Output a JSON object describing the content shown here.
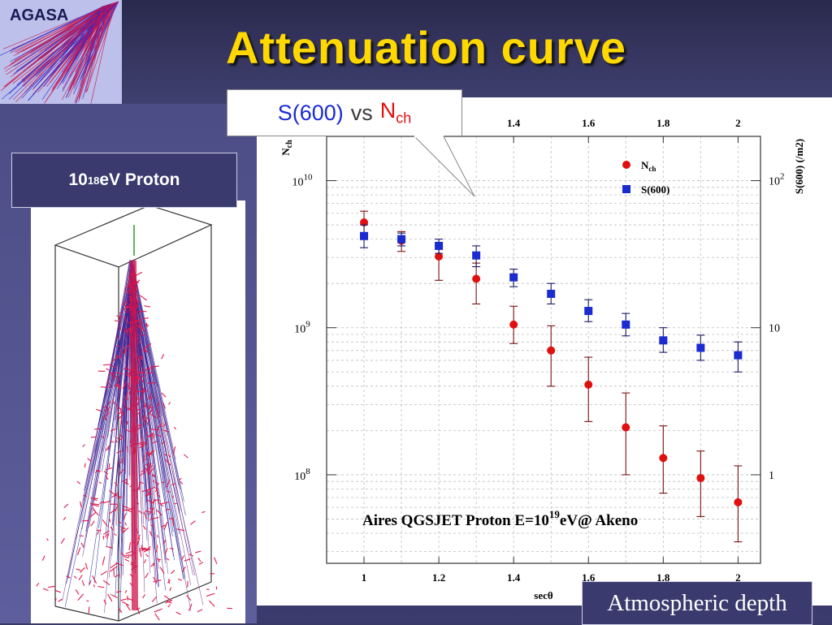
{
  "logo": {
    "text": "AGASA"
  },
  "title": "Attenuation curve",
  "proton_label": {
    "base": "10",
    "exp": "18",
    "rest": "eV Proton"
  },
  "callout": {
    "s600": "S(600)",
    "vs": "vs",
    "nch_main": "N",
    "nch_sub": "ch"
  },
  "depth_label": "Atmospheric depth",
  "colors": {
    "nch": "#e01010",
    "s600": "#1a2bd0",
    "title": "#ffd800"
  },
  "chart_data": {
    "type": "scatter",
    "xlabel": "secθ",
    "ylabel_left": "Nch",
    "ylabel_right": "S(600) (/m2)",
    "xlim": [
      0.9,
      2.06
    ],
    "ylim_left": [
      25000000.0,
      20000000000.0
    ],
    "ylim_right": [
      0.25,
      200
    ],
    "yscale": "log",
    "x_ticks": [
      "1",
      "1.2",
      "1.4",
      "1.6",
      "1.8",
      "2"
    ],
    "x_ticks_top": [
      "1.4",
      "1.6",
      "1.8",
      "2"
    ],
    "y_ticks_left": [
      {
        "base": "10",
        "exp": "10",
        "value": 10000000000.0
      },
      {
        "base": "10",
        "exp": "9",
        "value": 1000000000.0
      },
      {
        "base": "10",
        "exp": "8",
        "value": 100000000.0
      }
    ],
    "y_ticks_right": [
      {
        "base": "10",
        "exp": "2",
        "value": 100
      },
      {
        "base": "10",
        "exp": "",
        "value": 10
      },
      {
        "base": "1",
        "exp": "",
        "value": 1
      }
    ],
    "annotation": {
      "pre": "Aires QGSJET Proton E=10",
      "exp": "19",
      "post": "eV@ Akeno"
    },
    "legend": {
      "position": "top-right"
    },
    "series": [
      {
        "name": "N",
        "name_sub": "ch",
        "marker": "circle",
        "x": [
          1.0,
          1.1,
          1.2,
          1.3,
          1.4,
          1.5,
          1.6,
          1.7,
          1.8,
          1.9,
          2.0
        ],
        "y": [
          5200000000.0,
          3900000000.0,
          3050000000.0,
          2150000000.0,
          1050000000.0,
          700000000.0,
          410000000.0,
          210000000.0,
          130000000.0,
          95000000.0,
          65000000.0
        ],
        "y_lo": [
          4000000000.0,
          3300000000.0,
          2100000000.0,
          1450000000.0,
          780000000.0,
          400000000.0,
          230000000.0,
          100000000.0,
          75000000.0,
          52000000.0,
          35000000.0
        ],
        "y_hi": [
          6200000000.0,
          4500000000.0,
          3550000000.0,
          2750000000.0,
          1400000000.0,
          1030000000.0,
          630000000.0,
          360000000.0,
          215000000.0,
          145000000.0,
          115000000.0
        ]
      },
      {
        "name": "S(600)",
        "marker": "square",
        "x": [
          1.0,
          1.1,
          1.2,
          1.3,
          1.4,
          1.5,
          1.6,
          1.7,
          1.8,
          1.9,
          2.0
        ],
        "y": [
          42,
          40,
          36,
          31,
          22,
          17,
          13,
          10.5,
          8.2,
          7.3,
          6.5
        ],
        "y_lo": [
          35,
          36,
          32,
          26,
          19,
          14.5,
          11,
          8.8,
          6.8,
          6.0,
          5.0
        ],
        "y_hi": [
          50,
          44,
          40,
          36,
          25,
          20,
          15.5,
          12.5,
          10,
          8.9,
          8.0
        ]
      }
    ]
  }
}
